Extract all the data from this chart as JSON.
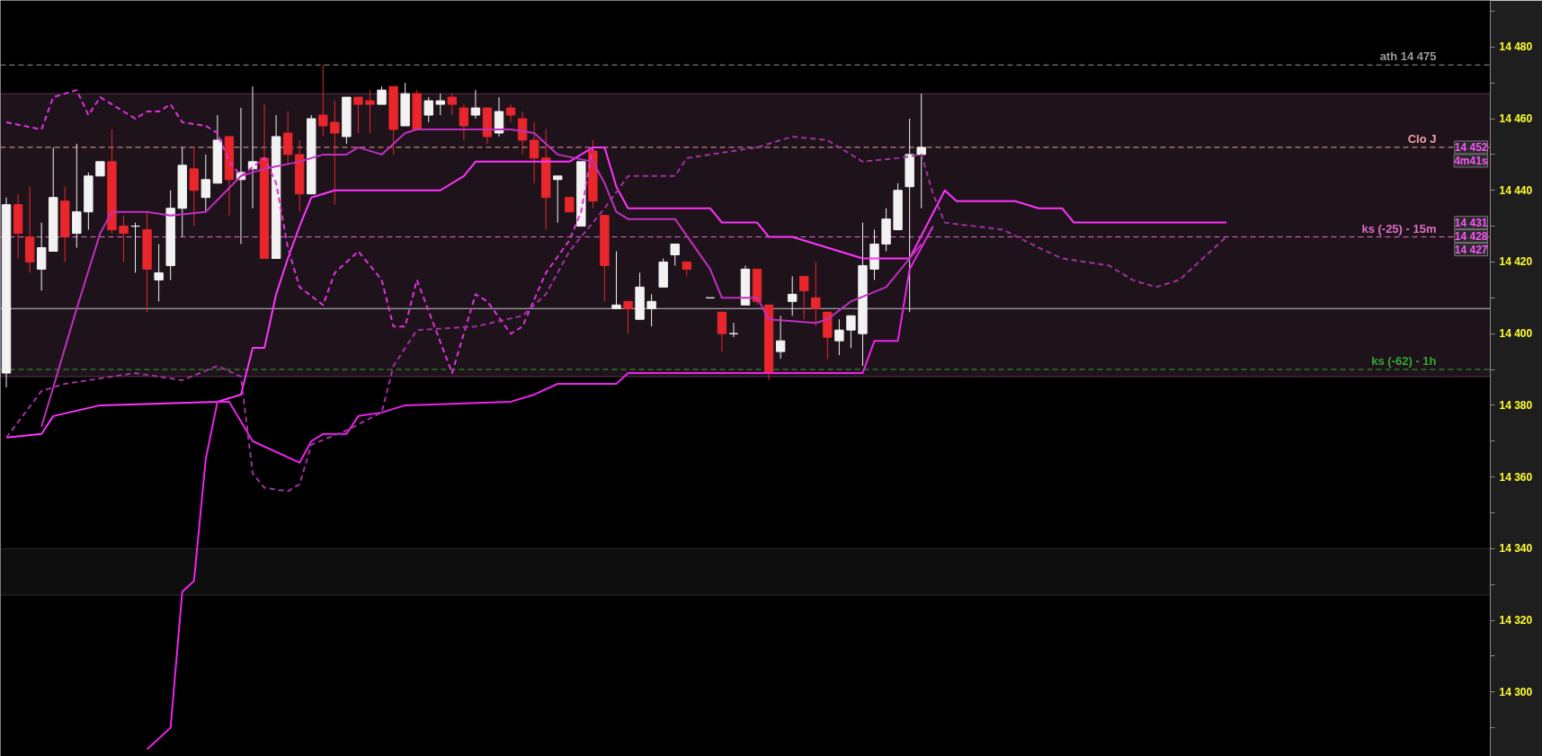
{
  "chart_data": {
    "type": "candlestick",
    "tick_labels": "y",
    "grid": false,
    "categories": [
      null,
      null,
      null,
      null,
      null,
      null,
      null,
      null,
      null,
      null,
      null,
      null,
      null,
      null,
      null,
      null,
      null,
      null,
      null,
      null,
      null,
      null,
      null,
      null,
      null,
      null,
      null,
      null,
      null,
      null,
      null,
      null,
      null,
      null,
      null,
      null,
      null,
      null,
      null,
      null,
      null,
      null,
      null,
      null,
      null,
      null,
      null,
      null,
      null,
      null,
      null,
      null,
      null,
      null,
      null,
      null,
      null,
      null,
      null,
      null,
      null,
      null,
      null,
      null,
      null,
      null,
      null,
      null,
      null,
      null,
      null,
      null,
      null,
      null,
      null,
      null,
      null,
      null,
      null,
      null,
      null,
      null,
      null,
      null,
      null,
      null,
      null,
      null,
      null,
      null,
      null,
      null,
      null,
      null,
      null,
      null,
      null,
      null,
      null,
      null,
      null,
      null,
      null,
      null,
      null,
      null,
      null,
      null,
      null,
      null,
      null,
      null,
      null,
      null,
      null,
      null,
      null,
      null,
      null,
      null,
      null,
      null,
      null,
      null,
      null,
      null,
      null
    ],
    "ohlc": [
      [
        14389,
        14438,
        14385,
        14436
      ],
      [
        14436,
        14439,
        14421,
        14428
      ],
      [
        14427,
        14441,
        14417,
        14420
      ],
      [
        14418,
        14431,
        14412,
        14424
      ],
      [
        14423,
        14452,
        14423,
        14438
      ],
      [
        14437,
        14441,
        14420,
        14427
      ],
      [
        14428,
        14453,
        14424,
        14434
      ],
      [
        14434,
        14445,
        14429,
        14444
      ],
      [
        14444,
        14448,
        14444,
        14448
      ],
      [
        14448,
        14457,
        14428,
        14429
      ],
      [
        14430,
        14433,
        14420,
        14428
      ],
      [
        14430,
        14431,
        14417,
        14430
      ],
      [
        14429,
        14434,
        14406,
        14418
      ],
      [
        14415,
        14425,
        14409,
        14417
      ],
      [
        14419,
        14440,
        14415,
        14435
      ],
      [
        14435,
        14452,
        14427,
        14447
      ],
      [
        14446,
        14452,
        14430,
        14440
      ],
      [
        14438,
        14450,
        14434,
        14443
      ],
      [
        14442,
        14461,
        14442,
        14454
      ],
      [
        14455,
        14455,
        14433,
        14443
      ],
      [
        14443,
        14463,
        14425,
        14445
      ],
      [
        14446,
        14469,
        14435,
        14448
      ],
      [
        14449,
        14464,
        14421,
        14421
      ],
      [
        14421,
        14461,
        14421,
        14455
      ],
      [
        14456,
        14462,
        14447,
        14450
      ],
      [
        14450,
        14454,
        14434,
        14439
      ],
      [
        14439,
        14461,
        14439,
        14460
      ],
      [
        14461,
        14475,
        14455,
        14458
      ],
      [
        14459,
        14465,
        14436,
        14456
      ],
      [
        14455,
        14466,
        14453,
        14466
      ],
      [
        14466,
        14466,
        14456,
        14464
      ],
      [
        14465,
        14468,
        14456,
        14464
      ],
      [
        14464,
        14469,
        14464,
        14468
      ],
      [
        14469,
        14469,
        14450,
        14457
      ],
      [
        14458,
        14470,
        14458,
        14467
      ],
      [
        14467,
        14468,
        14457,
        14457
      ],
      [
        14461,
        14466,
        14459,
        14465
      ],
      [
        14464,
        14467,
        14461,
        14465
      ],
      [
        14466,
        14467,
        14461,
        14464
      ],
      [
        14463,
        14464,
        14454,
        14458
      ],
      [
        14461,
        14468,
        14460,
        14463
      ],
      [
        14463,
        14463,
        14453,
        14455
      ],
      [
        14456,
        14466,
        14455,
        14462
      ],
      [
        14463,
        14464,
        14459,
        14461
      ],
      [
        14460,
        14462,
        14450,
        14454
      ],
      [
        14454,
        14459,
        14442,
        14449
      ],
      [
        14449,
        14457,
        14429,
        14438
      ],
      [
        14443,
        14444,
        14431,
        14444
      ],
      [
        14438,
        14438,
        14434,
        14434
      ],
      [
        14430,
        14448,
        14430,
        14448
      ],
      [
        14451,
        14454,
        14435,
        14437
      ],
      [
        14433,
        14433,
        14409,
        14419
      ],
      [
        14407,
        14423,
        14407,
        14408
      ],
      [
        14409,
        14409,
        14400,
        14407
      ],
      [
        14404,
        14417,
        14404,
        14413
      ],
      [
        14407,
        14411,
        14402,
        14409
      ],
      [
        14413,
        14421,
        14413,
        14420
      ],
      [
        14422,
        14425,
        14419,
        14425
      ],
      [
        14420,
        14420,
        14416,
        14418
      ],
      null,
      [
        14410,
        14410,
        14410,
        14410
      ],
      [
        14406,
        14406,
        14395,
        14400
      ],
      [
        14400,
        14403,
        14399,
        14400
      ],
      [
        14408,
        14419,
        14408,
        14418
      ],
      [
        14418,
        14418,
        14408,
        14409
      ],
      [
        14408,
        14408,
        14387,
        14389
      ],
      [
        14395,
        14405,
        14393,
        14398
      ],
      [
        14409,
        14416,
        14405,
        14411
      ],
      [
        14416,
        14416,
        14404,
        14412
      ],
      [
        14410,
        14420,
        14402,
        14407
      ],
      [
        14406,
        14406,
        14393,
        14399
      ],
      [
        14398,
        14404,
        14394,
        14401
      ],
      [
        14401,
        14405,
        14396,
        14405
      ],
      [
        14400,
        14431,
        14391,
        14419
      ],
      [
        14418,
        14429,
        14415,
        14425
      ],
      [
        14425,
        14435,
        14423,
        14432
      ],
      [
        14429,
        14442,
        14429,
        14440
      ],
      [
        14441,
        14460,
        14406,
        14450
      ],
      [
        14450,
        14467,
        14435,
        14452
      ],
      null,
      null,
      null,
      null,
      null,
      null,
      null,
      null,
      null,
      null,
      null,
      null,
      null,
      null,
      null,
      null,
      null,
      null,
      null,
      null,
      null,
      null,
      null,
      null,
      null,
      null,
      null,
      null,
      null,
      null,
      null,
      null,
      null,
      null,
      null,
      null,
      null,
      null,
      null,
      null,
      null,
      null,
      null,
      null,
      null,
      null,
      null,
      null
    ],
    "colors": [
      "#f2f2f2",
      "#e8262b",
      "#e8262b",
      "#f2f2f2",
      "#f2f2f2",
      "#e8262b",
      "#f2f2f2",
      "#f2f2f2",
      "#f2f2f2",
      "#e8262b",
      "#e8262b",
      "#f2f2f2",
      "#e8262b",
      "#f2f2f2",
      "#f2f2f2",
      "#f2f2f2",
      "#e8262b",
      "#f2f2f2",
      "#f2f2f2",
      "#e8262b",
      "#f2f2f2",
      "#f2f2f2",
      "#e8262b",
      "#f2f2f2",
      "#e8262b",
      "#e8262b",
      "#f2f2f2",
      "#e8262b",
      "#e8262b",
      "#f2f2f2",
      "#e8262b",
      "#e8262b",
      "#f2f2f2",
      "#e8262b",
      "#f2f2f2",
      "#e8262b",
      "#f2f2f2",
      "#f2f2f2",
      "#e8262b",
      "#e8262b",
      "#f2f2f2",
      "#e8262b",
      "#f2f2f2",
      "#e8262b",
      "#e8262b",
      "#e8262b",
      "#e8262b",
      "#f2f2f2",
      "#e8262b",
      "#f2f2f2",
      "#e8262b",
      "#e8262b",
      "#f2f2f2",
      "#e8262b",
      "#f2f2f2",
      "#f2f2f2",
      "#f2f2f2",
      "#f2f2f2",
      "#e8262b",
      null,
      "#f2f2f2",
      "#e8262b",
      "#f2f2f2",
      "#f2f2f2",
      "#e8262b",
      "#e8262b",
      "#f2f2f2",
      "#f2f2f2",
      "#e8262b",
      "#e8262b",
      "#e8262b",
      "#f2f2f2",
      "#f2f2f2",
      "#f2f2f2",
      "#f2f2f2",
      "#f2f2f2",
      "#f2f2f2",
      "#f2f2f2",
      "#f2f2f2",
      null,
      null,
      null,
      null,
      null,
      null,
      null,
      null,
      null,
      null,
      null,
      null,
      null,
      null,
      null,
      null,
      null,
      null,
      null,
      null,
      null,
      null,
      null,
      null,
      null,
      null,
      null,
      null,
      null,
      null,
      null,
      null,
      null,
      null,
      null,
      null,
      null,
      null,
      null,
      null,
      null,
      null,
      null,
      null,
      null,
      null,
      null,
      null
    ],
    "series": [
      {
        "type": "line",
        "color": "#ff33ff",
        "line_style": "solid",
        "values": [
          14371,
          null,
          null,
          14372,
          14377,
          null,
          null,
          null,
          14380,
          null,
          null,
          null,
          null,
          null,
          null,
          null,
          null,
          null,
          14381,
          null,
          14383,
          14396,
          14396,
          14411,
          14421,
          14430,
          14438,
          null,
          14440,
          null,
          null,
          null,
          null,
          null,
          null,
          null,
          null,
          14440,
          null,
          14444,
          14448,
          null,
          null,
          null,
          null,
          null,
          null,
          null,
          14448,
          null,
          14452,
          14452,
          14441,
          14435,
          null,
          null,
          null,
          null,
          null,
          null,
          14435,
          14431,
          null,
          null,
          14431,
          14427,
          null,
          14427,
          null,
          null,
          14424,
          null,
          null,
          14421,
          null,
          null,
          14421,
          14421,
          null,
          null,
          14440,
          14437,
          null,
          null,
          null,
          null,
          14437,
          null,
          14435,
          null,
          14435,
          14431,
          null,
          null,
          null,
          null,
          null,
          null,
          null,
          null,
          null,
          null,
          null,
          null,
          14431,
          null,
          null,
          null,
          null,
          null,
          null,
          null,
          null,
          null,
          null,
          null,
          null,
          null,
          null,
          null,
          null,
          null,
          null,
          null,
          null,
          null,
          null
        ]
      },
      {
        "type": "line",
        "color": "#ee22ee",
        "line_style": "solid",
        "values": [
          null,
          null,
          null,
          null,
          null,
          null,
          null,
          null,
          null,
          null,
          null,
          null,
          14284,
          null,
          14290,
          14328,
          14331,
          14365,
          14381,
          14381,
          null,
          14370,
          null,
          null,
          null,
          14364,
          14370,
          14372,
          null,
          14372,
          14377,
          null,
          14378,
          null,
          14380,
          null,
          null,
          null,
          null,
          null,
          null,
          null,
          null,
          14381,
          null,
          14383,
          null,
          14386,
          null,
          null,
          null,
          null,
          14386,
          14389,
          null,
          null,
          null,
          null,
          null,
          null,
          null,
          null,
          null,
          null,
          null,
          null,
          null,
          null,
          null,
          null,
          null,
          null,
          null,
          14389,
          14398,
          null,
          14398,
          14418,
          null,
          14430,
          null,
          null,
          null,
          null,
          null,
          null,
          null,
          null,
          null,
          null,
          null,
          null,
          null,
          null,
          null,
          null,
          null,
          null,
          null,
          null,
          null,
          null,
          null,
          null,
          null,
          null,
          null,
          null,
          null,
          null,
          null,
          null,
          null,
          null,
          null,
          null,
          null,
          null,
          null,
          null,
          null,
          null,
          null,
          null,
          null,
          null,
          null
        ]
      },
      {
        "type": "line",
        "color": "#c030c0",
        "line_style": "solid",
        "values": [
          null,
          null,
          null,
          14374,
          null,
          null,
          14407,
          null,
          14428,
          14434,
          null,
          null,
          14434,
          null,
          14433,
          null,
          null,
          14434,
          null,
          null,
          14444,
          null,
          14446,
          null,
          null,
          14448,
          null,
          14450,
          null,
          14450,
          14452,
          null,
          14450,
          null,
          14456,
          14457,
          null,
          null,
          null,
          null,
          null,
          null,
          null,
          14457,
          null,
          14456,
          null,
          14450,
          null,
          null,
          14448,
          14442,
          14434,
          14432,
          null,
          null,
          null,
          14432,
          null,
          null,
          14418,
          14410,
          null,
          null,
          14410,
          14404,
          null,
          null,
          null,
          14403,
          14404,
          null,
          14409,
          null,
          null,
          14413,
          null,
          null,
          14425,
          null,
          null,
          null,
          null,
          null,
          null,
          null,
          null,
          null,
          null,
          null,
          null,
          null,
          null,
          null,
          null,
          null,
          null,
          null,
          null,
          null,
          null,
          null,
          null,
          null,
          null,
          null,
          null,
          null,
          null,
          null,
          null,
          null,
          null,
          null,
          null,
          null,
          null,
          null,
          null,
          null,
          null,
          null,
          null,
          null,
          null,
          null,
          null
        ]
      },
      {
        "type": "line",
        "color": "#dd33dd",
        "line_style": "dashed",
        "values": [
          14459,
          null,
          null,
          14457,
          14466,
          null,
          14468,
          14461,
          14466,
          null,
          null,
          14460,
          14462,
          14462,
          14464,
          14459,
          null,
          14458,
          14456,
          14448,
          14444,
          null,
          14449,
          14442,
          14424,
          14413,
          null,
          14408,
          14417,
          null,
          14423,
          null,
          14415,
          14402,
          14402,
          14415,
          null,
          null,
          14389,
          null,
          14411,
          14409,
          null,
          14400,
          14402,
          null,
          14417,
          null,
          14426,
          14434,
          14452,
          null,
          null,
          null,
          null,
          null,
          null,
          null,
          null,
          null,
          null,
          null,
          null,
          null,
          null,
          null,
          null,
          null,
          null,
          null,
          null,
          null,
          null,
          null,
          null,
          null,
          null,
          null,
          null,
          null,
          null,
          null,
          null,
          null,
          null,
          null,
          null,
          null,
          null,
          null,
          null,
          null,
          null,
          null,
          null,
          null,
          null,
          null,
          null,
          null,
          null,
          null,
          null,
          null,
          null,
          null,
          null,
          null,
          null,
          null,
          null,
          null,
          null,
          null,
          null,
          null,
          null,
          null,
          null,
          null,
          null,
          null,
          null,
          null,
          null,
          null,
          null
        ]
      },
      {
        "type": "line",
        "color": "#a030a0",
        "line_style": "dashed",
        "values": [
          14371,
          null,
          null,
          14384,
          null,
          14386,
          null,
          null,
          null,
          null,
          null,
          14389,
          null,
          null,
          null,
          14387,
          null,
          null,
          14391,
          null,
          14388,
          14361,
          14357,
          null,
          14356,
          14358,
          14369,
          null,
          null,
          14373,
          null,
          null,
          14378,
          14391,
          null,
          14401,
          null,
          null,
          null,
          null,
          14402,
          null,
          null,
          null,
          14405,
          null,
          14411,
          null,
          14423,
          null,
          null,
          14435,
          null,
          14444,
          null,
          null,
          null,
          14444,
          14449,
          null,
          null,
          null,
          null,
          null,
          14452,
          null,
          null,
          14455,
          null,
          null,
          14454,
          null,
          null,
          14448,
          null,
          null,
          14449,
          null,
          14450,
          14439,
          14431,
          null,
          null,
          null,
          null,
          14429,
          null,
          null,
          14424,
          null,
          14421,
          null,
          null,
          null,
          14419,
          null,
          14415,
          null,
          14413,
          null,
          14415,
          null,
          null,
          null,
          14427,
          null,
          null,
          null,
          null,
          null,
          null,
          null,
          null,
          null,
          null,
          null,
          null,
          null,
          null,
          null,
          null,
          null,
          null,
          null,
          null,
          null,
          null
        ]
      }
    ],
    "ylim": [
      14282,
      14493
    ],
    "yticks": [
      {
        "value": 14290,
        "label": null
      },
      {
        "value": 14300,
        "label": "14 300"
      },
      {
        "value": 14310,
        "label": null
      },
      {
        "value": 14320,
        "label": "14 320"
      },
      {
        "value": 14330,
        "label": null
      },
      {
        "value": 14340,
        "label": "14 340"
      },
      {
        "value": 14350,
        "label": null
      },
      {
        "value": 14360,
        "label": "14 360"
      },
      {
        "value": 14370,
        "label": null
      },
      {
        "value": 14380,
        "label": "14 380"
      },
      {
        "value": 14390,
        "label": null
      },
      {
        "value": 14400,
        "label": "14 400"
      },
      {
        "value": 14410,
        "label": null
      },
      {
        "value": 14420,
        "label": "14 420"
      },
      {
        "value": 14430,
        "label": null
      },
      {
        "value": 14440,
        "label": "14 440"
      },
      {
        "value": 14450,
        "label": null
      },
      {
        "value": 14460,
        "label": "14 460"
      },
      {
        "value": 14470,
        "label": null
      },
      {
        "value": 14480,
        "label": "14 480"
      },
      {
        "value": 14490,
        "label": null
      }
    ],
    "ref_lines": [
      {
        "axis": "y",
        "value": 14475,
        "label": "ath 14 475",
        "color": "#9a9a9a",
        "line_style": "dashed"
      },
      {
        "axis": "y",
        "value": 14452,
        "label": "Clo J",
        "color": "#f0a0a0",
        "line_style": "dashed"
      },
      {
        "axis": "y",
        "value": 14427,
        "label": "ks (-25) - 15m",
        "color": "#e070c8",
        "line_style": "dashed"
      },
      {
        "axis": "y",
        "value": 14407,
        "label": null,
        "color": "#c8c8c8",
        "line_style": "solid"
      },
      {
        "axis": "y",
        "value": 14390,
        "label": "ks (-62) - 1h",
        "color": "#33aa33",
        "line_style": "dashed"
      }
    ],
    "bands": [
      {
        "axis": "y",
        "from": 14388,
        "to": 14467,
        "label": null,
        "color": "#ff99dd"
      },
      {
        "axis": "y",
        "from": 14327,
        "to": 14340,
        "label": null,
        "color": "#777777"
      }
    ],
    "annotations": [
      {
        "text": "14 452",
        "y": 14452
      },
      {
        "text": "4m41s",
        "y": 14452
      },
      {
        "text": "14 431",
        "y": 14431
      },
      {
        "text": "14 428",
        "y": 14428
      },
      {
        "text": "14 427",
        "y": 14427
      }
    ]
  }
}
